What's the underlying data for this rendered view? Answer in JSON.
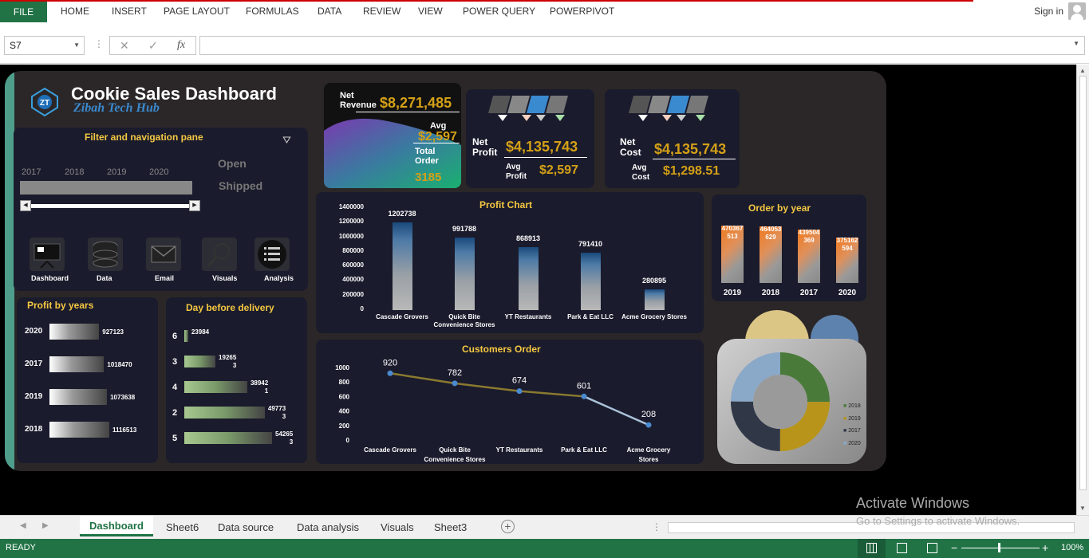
{
  "ribbon": {
    "file": "FILE",
    "tabs": [
      "HOME",
      "INSERT",
      "PAGE LAYOUT",
      "FORMULAS",
      "DATA",
      "REVIEW",
      "VIEW",
      "POWER QUERY",
      "POWERPIVOT"
    ],
    "signin": "Sign in"
  },
  "formula_bar": {
    "name_box": "S7",
    "formula": ""
  },
  "dashboard": {
    "title": "Cookie Sales Dashboard",
    "subtitle": "Zibah Tech Hub",
    "filter": {
      "title": "Filter and navigation pane",
      "years": [
        "2017",
        "2018",
        "2019",
        "2020"
      ],
      "status_open": "Open",
      "status_shipped": "Shipped"
    },
    "nav": [
      "Dashboard",
      "Data",
      "Email",
      "Visuals",
      "Analysis"
    ],
    "kpi_revenue": {
      "label1": "Net",
      "label2": "Revenue",
      "value": "$8,271,485",
      "avg_label": "Avg",
      "avg_value": "$2,597",
      "order_label1": "Total",
      "order_label2": "Order",
      "order_value": "3185"
    },
    "kpi_profit": {
      "label1": "Net",
      "label2": "Profit",
      "value": "$4,135,743",
      "avg1": "Avg",
      "avg2": "Profit",
      "avg_value": "$2,597"
    },
    "kpi_cost": {
      "label1": "Net",
      "label2": "Cost",
      "value": "$4,135,743",
      "avg1": "Avg",
      "avg2": "Cost",
      "avg_value": "$1,298.51"
    },
    "profit_years": {
      "title": "Profit by years"
    },
    "delivery": {
      "title": "Day before delivery"
    },
    "profit_chart": {
      "title": "Profit Chart"
    },
    "customers_order": {
      "title": "Customers Order"
    },
    "order_year": {
      "title": "Order by year"
    },
    "donut": {
      "legend": [
        "2018",
        "2019",
        "2017",
        "2020"
      ],
      "colors": [
        "#4a7a3a",
        "#b8941a",
        "#303848",
        "#8aa8c8"
      ]
    }
  },
  "chart_data": [
    {
      "type": "bar",
      "title": "Profit Chart",
      "categories": [
        "Cascade Grovers",
        "Quick Bite Convenience Stores",
        "YT Restaurants",
        "Park & Eat LLC",
        "Acme Grocery Stores"
      ],
      "values": [
        1202738,
        991788,
        868913,
        791410,
        280895
      ],
      "ytick_labels": [
        "1400000",
        "1200000",
        "1000000",
        "800000",
        "600000",
        "400000",
        "200000",
        "0"
      ],
      "ylim": [
        0,
        1400000
      ]
    },
    {
      "type": "line",
      "title": "Customers Order",
      "categories": [
        "Cascade Grovers",
        "Quick Bite Convenience Stores",
        "YT Restaurants",
        "Park & Eat LLC",
        "Acme Grocery Stores"
      ],
      "values": [
        920,
        782,
        674,
        601,
        208
      ],
      "ytick_labels": [
        "1000",
        "800",
        "600",
        "400",
        "200",
        "0"
      ],
      "ylim": [
        0,
        1000
      ]
    },
    {
      "type": "bar",
      "title": "Order by year",
      "categories": [
        "2019",
        "2018",
        "2017",
        "2020"
      ],
      "values": [
        470367513,
        464053629,
        439504369,
        375162594
      ],
      "labels": [
        [
          "470367",
          "513"
        ],
        [
          "464053",
          "629"
        ],
        [
          "439504",
          "369"
        ],
        [
          "375162",
          "594"
        ]
      ]
    },
    {
      "type": "bar",
      "title": "Profit by years",
      "categories": [
        "2020",
        "2017",
        "2019",
        "2018"
      ],
      "values": [
        927123,
        1018470,
        1073638,
        1116513
      ]
    },
    {
      "type": "bar",
      "title": "Day before delivery",
      "categories": [
        "6",
        "3",
        "4",
        "2",
        "5"
      ],
      "values": [
        23984,
        192653,
        389421,
        497733,
        542653
      ],
      "labels": [
        [
          "23984",
          ""
        ],
        [
          "19265",
          "3"
        ],
        [
          "38942",
          "1"
        ],
        [
          "49773",
          "3"
        ],
        [
          "54265",
          "3"
        ]
      ]
    }
  ],
  "sheet_tabs": [
    "Dashboard",
    "Sheet6",
    "Data source",
    "Data analysis",
    "Visuals",
    "Sheet3"
  ],
  "status": {
    "ready": "READY",
    "zoom": "100%"
  },
  "watermark": {
    "line1": "Activate Windows",
    "line2": "Go to Settings to activate Windows."
  }
}
